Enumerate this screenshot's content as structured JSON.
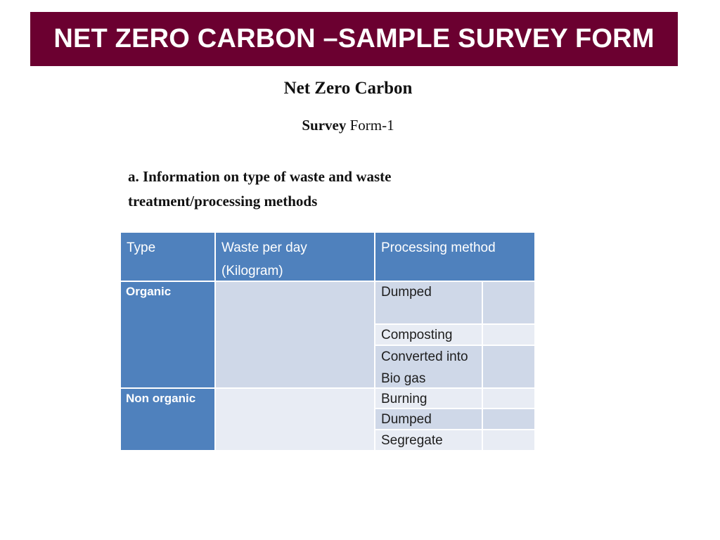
{
  "header": {
    "title": "NET ZERO CARBON –SAMPLE SURVEY FORM"
  },
  "document": {
    "heading": "Net Zero Carbon",
    "subheading_bold": "Survey",
    "subheading_rest": "Form-1",
    "section_line1": "a. Information on type of waste and waste",
    "section_line2": "treatment/processing  methods"
  },
  "table": {
    "headers": {
      "type": "Type",
      "waste_line1": "Waste per day",
      "waste_line2": "(Kilogram)",
      "method": "Processing method"
    },
    "organic": {
      "type": "Organic",
      "methods": [
        "Dumped",
        "Composting",
        "Converted into",
        "Bio gas"
      ]
    },
    "non_organic": {
      "type": "Non organic",
      "methods": [
        "Burning",
        "Dumped",
        "Segregate"
      ]
    }
  }
}
